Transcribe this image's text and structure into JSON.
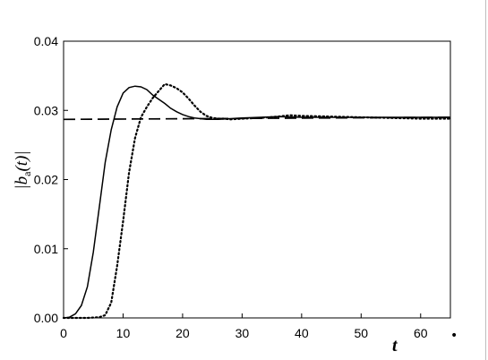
{
  "chart_data": {
    "type": "line",
    "xlabel": "t",
    "ylabel_prefix": "|b",
    "ylabel_sub": "a",
    "ylabel_suffix": "(t)|",
    "xlim": [
      0,
      65
    ],
    "ylim": [
      0,
      0.04
    ],
    "x_ticks": [
      0,
      10,
      20,
      30,
      40,
      50,
      60
    ],
    "y_ticks": [
      0.0,
      0.01,
      0.02,
      0.03,
      0.04
    ],
    "x_tick_labels": [
      "0",
      "10",
      "20",
      "30",
      "40",
      "50",
      "60"
    ],
    "y_tick_labels": [
      "0.00",
      "0.01",
      "0.02",
      "0.03",
      "0.04"
    ],
    "grid": false,
    "legend": "none",
    "series": [
      {
        "style": "solid",
        "x": [
          0,
          1,
          2,
          3,
          4,
          5,
          6,
          7,
          8,
          9,
          10,
          11,
          12,
          13,
          14,
          15,
          16,
          17,
          18,
          19,
          20,
          21,
          22,
          23,
          24,
          25,
          26,
          28,
          30,
          33,
          36,
          40,
          45,
          50,
          55,
          60,
          65
        ],
        "y": [
          0,
          0.0001,
          0.0006,
          0.0018,
          0.0045,
          0.0095,
          0.016,
          0.0225,
          0.0272,
          0.0305,
          0.0325,
          0.0333,
          0.0335,
          0.0334,
          0.033,
          0.0322,
          0.0316,
          0.031,
          0.0303,
          0.0298,
          0.0294,
          0.0291,
          0.0289,
          0.0288,
          0.0287,
          0.0287,
          0.0287,
          0.0288,
          0.0289,
          0.029,
          0.0291,
          0.029,
          0.029,
          0.029,
          0.029,
          0.029,
          0.029
        ]
      },
      {
        "style": "dotted",
        "x": [
          0,
          4,
          5,
          6,
          7,
          8,
          9,
          10,
          11,
          12,
          13,
          14,
          15,
          16,
          17,
          18,
          19,
          20,
          21,
          22,
          23,
          24,
          25,
          26,
          27,
          28,
          30,
          33,
          36,
          38,
          40,
          45,
          50,
          55,
          60,
          65
        ],
        "y": [
          0,
          0,
          5e-05,
          0.0001,
          0.0004,
          0.0022,
          0.0075,
          0.014,
          0.021,
          0.026,
          0.029,
          0.0305,
          0.0318,
          0.0328,
          0.0338,
          0.0336,
          0.0332,
          0.0326,
          0.0317,
          0.0307,
          0.0298,
          0.0292,
          0.0289,
          0.0288,
          0.0288,
          0.0287,
          0.0288,
          0.0289,
          0.0291,
          0.0293,
          0.0292,
          0.0291,
          0.029,
          0.0289,
          0.0288,
          0.0288
        ]
      },
      {
        "style": "dashed",
        "x": [
          0,
          65
        ],
        "y": [
          0.0287,
          0.029
        ]
      }
    ]
  },
  "footnote_mark": "•"
}
